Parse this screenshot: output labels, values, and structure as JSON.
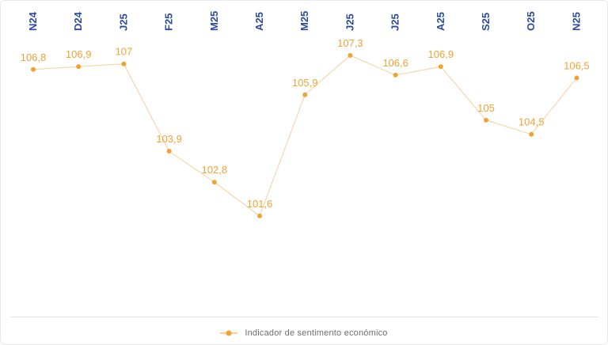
{
  "chart_data": {
    "type": "line",
    "title": "",
    "categories": [
      "N24",
      "D24",
      "J25",
      "F25",
      "M25",
      "A25",
      "M25",
      "J25",
      "J25",
      "A25",
      "S25",
      "O25",
      "N25"
    ],
    "values": [
      106.8,
      106.9,
      107,
      103.9,
      102.8,
      101.6,
      105.9,
      107.3,
      106.6,
      106.9,
      105,
      104.5,
      106.5
    ],
    "point_labels": [
      "106,8",
      "106,9",
      "107",
      "103,9",
      "102,8",
      "101,6",
      "105,9",
      "107,3",
      "106,6",
      "106,9",
      "105",
      "104,5",
      "106,5"
    ],
    "series": [
      {
        "name": "Indicador de sentimento económico",
        "values": [
          106.8,
          106.9,
          107,
          103.9,
          102.8,
          101.6,
          105.9,
          107.3,
          106.6,
          106.9,
          105,
          104.5,
          106.5
        ]
      }
    ],
    "series_name": "Indicador de sentimento económico",
    "xlabel": "",
    "ylabel": "",
    "ylim": [
      101,
      108
    ],
    "grid": false,
    "legend_position": "bottom",
    "x_axis_position": "top",
    "category_label_rotation_deg": -90,
    "decimal_separator": ",",
    "colors": {
      "marker": "#F2A233",
      "line": "#F7CF9C",
      "value_label": "#F2A233",
      "category_label": "#2B4A9E",
      "legend_text": "#6E6E6E",
      "card_border": "#E8E8E8",
      "axis_line": "#E3E3E3"
    }
  },
  "legend": {
    "label": "Indicador de sentimento económico"
  }
}
